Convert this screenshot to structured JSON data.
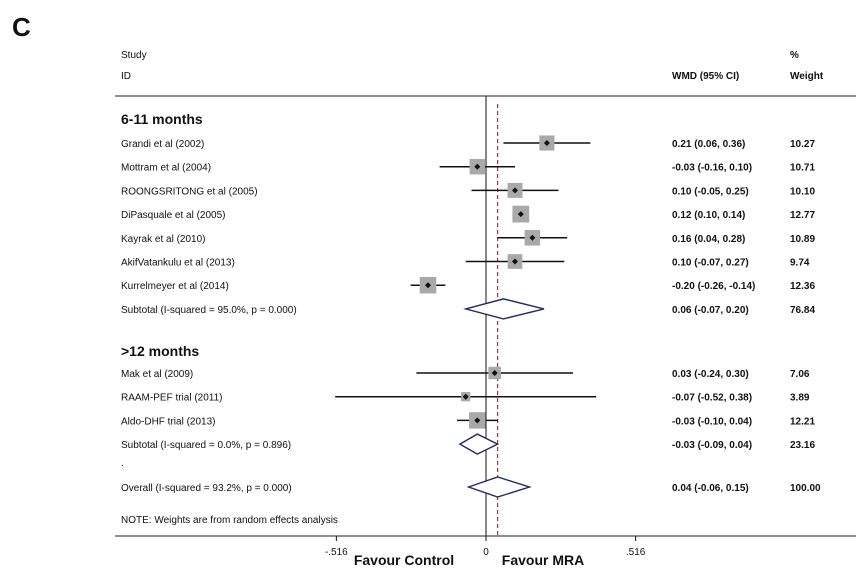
{
  "panel_label": "C",
  "header": {
    "study_label": "Study",
    "id_label": "ID",
    "effect_label": "WMD (95% CI)",
    "pct_label": "%",
    "weight_label": "Weight"
  },
  "footer": {
    "note": "NOTE: Weights are from random effects analysis",
    "x_ticks": [
      {
        "value": -0.516,
        "label": "-.516"
      },
      {
        "value": 0,
        "label": "0"
      },
      {
        "value": 0.516,
        "label": ".516"
      }
    ],
    "favour_left": "Favour Control",
    "favour_right": "Favour MRA"
  },
  "chart_data": {
    "type": "forest",
    "measure": "WMD (95% CI)",
    "null_value": 0,
    "overall_effect": 0.04,
    "xlim": [
      -0.516,
      0.516
    ],
    "x_ticks": [
      -0.516,
      0,
      0.516
    ],
    "groups": [
      {
        "title": "6-11 months",
        "studies": [
          {
            "label": "Grandi et al (2002)",
            "effect": 0.21,
            "lower": 0.06,
            "upper": 0.36,
            "ci_text": "0.21 (0.06, 0.36)",
            "weight": "10.27"
          },
          {
            "label": "Mottram et al (2004)",
            "effect": -0.03,
            "lower": -0.16,
            "upper": 0.1,
            "ci_text": "-0.03 (-0.16, 0.10)",
            "weight": "10.71"
          },
          {
            "label": "ROONGSRITONG et al (2005)",
            "effect": 0.1,
            "lower": -0.05,
            "upper": 0.25,
            "ci_text": "0.10 (-0.05, 0.25)",
            "weight": "10.10"
          },
          {
            "label": "DiPasquale et al (2005)",
            "effect": 0.12,
            "lower": 0.1,
            "upper": 0.14,
            "ci_text": "0.12 (0.10, 0.14)",
            "weight": "12.77"
          },
          {
            "label": "Kayrak et al (2010)",
            "effect": 0.16,
            "lower": 0.04,
            "upper": 0.28,
            "ci_text": "0.16 (0.04, 0.28)",
            "weight": "10.89"
          },
          {
            "label": "AkifVatankulu et al (2013)",
            "effect": 0.1,
            "lower": -0.07,
            "upper": 0.27,
            "ci_text": "0.10 (-0.07, 0.27)",
            "weight": "9.74"
          },
          {
            "label": "Kurrelmeyer et al (2014)",
            "effect": -0.2,
            "lower": -0.26,
            "upper": -0.14,
            "ci_text": "-0.20 (-0.26, -0.14)",
            "weight": "12.36"
          }
        ],
        "subtotal": {
          "label": "Subtotal  (I-squared = 95.0%, p = 0.000)",
          "effect": 0.06,
          "lower": -0.07,
          "upper": 0.2,
          "ci_text": "0.06 (-0.07, 0.20)",
          "weight": "76.84"
        }
      },
      {
        "title": ">12 months",
        "studies": [
          {
            "label": "Mak et al (2009)",
            "effect": 0.03,
            "lower": -0.24,
            "upper": 0.3,
            "ci_text": "0.03 (-0.24, 0.30)",
            "weight": "7.06"
          },
          {
            "label": "RAAM-PEF trial (2011)",
            "effect": -0.07,
            "lower": -0.52,
            "upper": 0.38,
            "ci_text": "-0.07 (-0.52, 0.38)",
            "weight": "3.89"
          },
          {
            "label": "Aldo-DHF trial (2013)",
            "effect": -0.03,
            "lower": -0.1,
            "upper": 0.04,
            "ci_text": "-0.03 (-0.10, 0.04)",
            "weight": "12.21"
          }
        ],
        "subtotal": {
          "label": "Subtotal  (I-squared = 0.0%, p = 0.896)",
          "effect": -0.03,
          "lower": -0.09,
          "upper": 0.04,
          "ci_text": "-0.03 (-0.09, 0.04)",
          "weight": "23.16"
        }
      }
    ],
    "separator_text": ".",
    "overall": {
      "label": "Overall  (I-squared = 93.2%, p = 0.000)",
      "effect": 0.04,
      "lower": -0.06,
      "upper": 0.15,
      "ci_text": "0.04 (-0.06, 0.15)",
      "weight": "100.00"
    }
  }
}
